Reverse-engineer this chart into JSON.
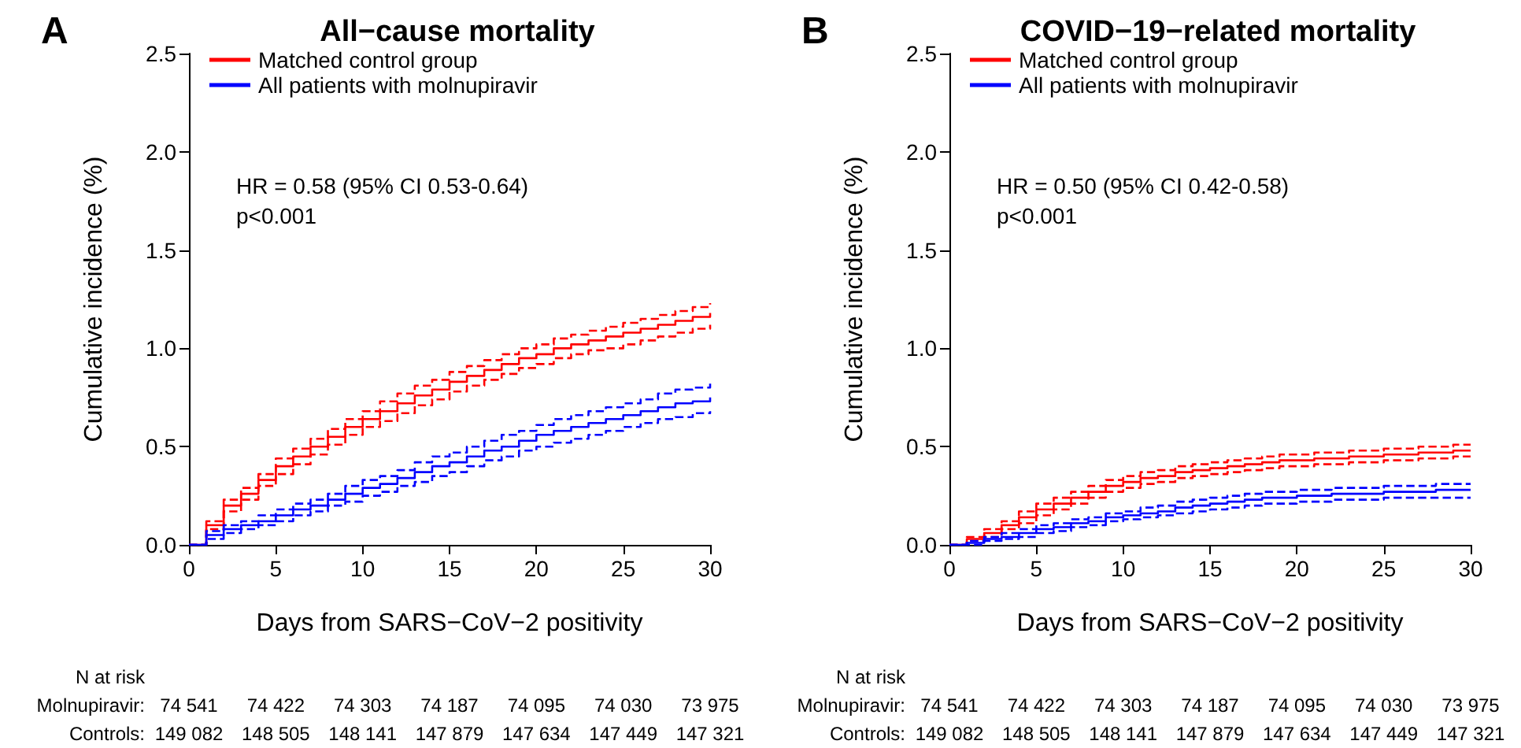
{
  "chart_data": [
    {
      "type": "step",
      "title": "All−cause mortality",
      "xlabel": "Days from SARS−CoV−2 positivity",
      "ylabel": "Cumulative incidence (%)",
      "x": [
        0,
        1,
        2,
        3,
        4,
        5,
        6,
        7,
        8,
        9,
        10,
        11,
        12,
        13,
        14,
        15,
        16,
        17,
        18,
        19,
        20,
        21,
        22,
        23,
        24,
        25,
        26,
        27,
        28,
        29,
        30
      ],
      "series": [
        {
          "name": "Matched control group",
          "color": "#ff0000",
          "values": [
            0,
            0.1,
            0.2,
            0.26,
            0.33,
            0.4,
            0.45,
            0.5,
            0.55,
            0.6,
            0.64,
            0.68,
            0.72,
            0.76,
            0.79,
            0.83,
            0.86,
            0.89,
            0.92,
            0.95,
            0.97,
            1.0,
            1.02,
            1.04,
            1.06,
            1.08,
            1.1,
            1.12,
            1.14,
            1.16,
            1.18
          ]
        },
        {
          "color": "#ff0000",
          "line_style": "dashed",
          "values": [
            0,
            0.08,
            0.17,
            0.23,
            0.3,
            0.36,
            0.41,
            0.46,
            0.51,
            0.56,
            0.6,
            0.63,
            0.67,
            0.71,
            0.74,
            0.78,
            0.81,
            0.84,
            0.87,
            0.9,
            0.92,
            0.95,
            0.97,
            0.99,
            1.0,
            1.02,
            1.04,
            1.06,
            1.08,
            1.1,
            1.12
          ]
        },
        {
          "color": "#ff0000",
          "line_style": "dashed",
          "values": [
            0,
            0.12,
            0.23,
            0.29,
            0.36,
            0.44,
            0.49,
            0.54,
            0.59,
            0.64,
            0.68,
            0.73,
            0.77,
            0.81,
            0.84,
            0.88,
            0.91,
            0.94,
            0.97,
            1.0,
            1.02,
            1.05,
            1.07,
            1.09,
            1.11,
            1.13,
            1.15,
            1.17,
            1.19,
            1.21,
            1.23
          ]
        },
        {
          "name": "All patients with molnupiravir",
          "color": "#0000ff",
          "values": [
            0,
            0.05,
            0.08,
            0.1,
            0.12,
            0.15,
            0.18,
            0.2,
            0.23,
            0.26,
            0.29,
            0.31,
            0.34,
            0.37,
            0.4,
            0.42,
            0.45,
            0.48,
            0.5,
            0.53,
            0.56,
            0.58,
            0.6,
            0.62,
            0.64,
            0.66,
            0.68,
            0.7,
            0.72,
            0.73,
            0.75
          ]
        },
        {
          "color": "#0000ff",
          "line_style": "dashed",
          "values": [
            0,
            0.03,
            0.06,
            0.08,
            0.1,
            0.12,
            0.15,
            0.17,
            0.2,
            0.22,
            0.25,
            0.27,
            0.3,
            0.32,
            0.35,
            0.37,
            0.4,
            0.43,
            0.45,
            0.48,
            0.5,
            0.52,
            0.54,
            0.56,
            0.58,
            0.6,
            0.62,
            0.64,
            0.65,
            0.67,
            0.68
          ]
        },
        {
          "color": "#0000ff",
          "line_style": "dashed",
          "values": [
            0,
            0.07,
            0.1,
            0.12,
            0.15,
            0.18,
            0.21,
            0.23,
            0.26,
            0.3,
            0.33,
            0.35,
            0.38,
            0.42,
            0.45,
            0.47,
            0.5,
            0.53,
            0.56,
            0.58,
            0.61,
            0.64,
            0.66,
            0.68,
            0.7,
            0.72,
            0.74,
            0.77,
            0.79,
            0.8,
            0.82
          ]
        }
      ],
      "xlim": [
        0,
        30
      ],
      "xticks": [
        0,
        5,
        10,
        15,
        20,
        25,
        30
      ],
      "ylim": [
        0,
        2.5
      ],
      "yticks": [
        {
          "value": 0,
          "label": "0.0"
        },
        {
          "value": 0.5,
          "label": "0.5"
        },
        {
          "value": 1,
          "label": "1.0"
        },
        {
          "value": 1.5,
          "label": "1.5"
        },
        {
          "value": 2,
          "label": "2.0"
        },
        {
          "value": 2.5,
          "label": "2.5"
        }
      ],
      "legend": "top left",
      "grid": false,
      "line_style": "solid",
      "annotations": [
        "A",
        "HR = 0.58 (95% CI 0.53-0.64)",
        "p<0.001",
        "N at risk",
        "Molnupiravir:",
        "74 541",
        "74 422",
        "74 303",
        "74 187",
        "74 095",
        "74 030",
        "73 975",
        "Controls:",
        "149 082",
        "148 505",
        "148 141",
        "147 879",
        "147 634",
        "147 449",
        "147 321"
      ]
    },
    {
      "type": "step",
      "title": "COVID−19−related mortality",
      "xlabel": "Days from SARS−CoV−2 positivity",
      "ylabel": "Cumulative incidence (%)",
      "x": [
        0,
        1,
        2,
        3,
        4,
        5,
        6,
        7,
        8,
        9,
        10,
        11,
        12,
        13,
        14,
        15,
        16,
        17,
        18,
        19,
        20,
        21,
        22,
        23,
        24,
        25,
        26,
        27,
        28,
        29,
        30
      ],
      "series": [
        {
          "name": "Matched control group",
          "color": "#ff0000",
          "values": [
            0,
            0.03,
            0.06,
            0.1,
            0.14,
            0.18,
            0.21,
            0.24,
            0.27,
            0.3,
            0.32,
            0.34,
            0.35,
            0.37,
            0.38,
            0.39,
            0.4,
            0.41,
            0.42,
            0.43,
            0.43,
            0.44,
            0.44,
            0.45,
            0.45,
            0.46,
            0.46,
            0.47,
            0.47,
            0.48,
            0.48
          ]
        },
        {
          "color": "#ff0000",
          "line_style": "dashed",
          "values": [
            0,
            0.02,
            0.04,
            0.08,
            0.11,
            0.15,
            0.18,
            0.21,
            0.24,
            0.27,
            0.29,
            0.31,
            0.32,
            0.34,
            0.35,
            0.36,
            0.37,
            0.38,
            0.39,
            0.4,
            0.4,
            0.41,
            0.41,
            0.42,
            0.42,
            0.43,
            0.43,
            0.44,
            0.44,
            0.45,
            0.45
          ]
        },
        {
          "color": "#ff0000",
          "line_style": "dashed",
          "values": [
            0,
            0.04,
            0.08,
            0.12,
            0.17,
            0.21,
            0.24,
            0.27,
            0.3,
            0.33,
            0.35,
            0.37,
            0.38,
            0.4,
            0.41,
            0.42,
            0.43,
            0.44,
            0.45,
            0.46,
            0.46,
            0.47,
            0.47,
            0.48,
            0.48,
            0.49,
            0.49,
            0.5,
            0.5,
            0.51,
            0.51
          ]
        },
        {
          "name": "All patients with molnupiravir",
          "color": "#0000ff",
          "values": [
            0,
            0.01,
            0.03,
            0.04,
            0.06,
            0.08,
            0.09,
            0.11,
            0.12,
            0.14,
            0.15,
            0.16,
            0.17,
            0.19,
            0.2,
            0.21,
            0.22,
            0.23,
            0.24,
            0.24,
            0.25,
            0.25,
            0.26,
            0.26,
            0.26,
            0.27,
            0.27,
            0.27,
            0.28,
            0.28,
            0.28
          ]
        },
        {
          "color": "#0000ff",
          "line_style": "dashed",
          "values": [
            0,
            0.0,
            0.02,
            0.03,
            0.04,
            0.06,
            0.07,
            0.09,
            0.1,
            0.12,
            0.13,
            0.14,
            0.15,
            0.16,
            0.17,
            0.18,
            0.19,
            0.2,
            0.21,
            0.21,
            0.22,
            0.22,
            0.23,
            0.23,
            0.23,
            0.24,
            0.24,
            0.24,
            0.24,
            0.24,
            0.24
          ]
        },
        {
          "color": "#0000ff",
          "line_style": "dashed",
          "values": [
            0,
            0.02,
            0.04,
            0.06,
            0.08,
            0.1,
            0.11,
            0.13,
            0.14,
            0.16,
            0.17,
            0.19,
            0.2,
            0.22,
            0.23,
            0.24,
            0.25,
            0.26,
            0.27,
            0.27,
            0.28,
            0.28,
            0.29,
            0.29,
            0.29,
            0.3,
            0.3,
            0.3,
            0.31,
            0.31,
            0.31
          ]
        }
      ],
      "xlim": [
        0,
        30
      ],
      "xticks": [
        0,
        5,
        10,
        15,
        20,
        25,
        30
      ],
      "ylim": [
        0,
        2.5
      ],
      "yticks": [
        {
          "value": 0,
          "label": "0.0"
        },
        {
          "value": 0.5,
          "label": "0.5"
        },
        {
          "value": 1,
          "label": "1.0"
        },
        {
          "value": 1.5,
          "label": "1.5"
        },
        {
          "value": 2,
          "label": "2.0"
        },
        {
          "value": 2.5,
          "label": "2.5"
        }
      ],
      "legend": "top left",
      "grid": false,
      "line_style": "solid",
      "annotations": [
        "B",
        "HR = 0.50 (95% CI 0.42-0.58)",
        "p<0.001",
        "N at risk",
        "Molnupiravir:",
        "74 541",
        "74 422",
        "74 303",
        "74 187",
        "74 095",
        "74 030",
        "73 975",
        "Controls:",
        "149 082",
        "148 505",
        "148 141",
        "147 879",
        "147 634",
        "147 449",
        "147 321"
      ]
    }
  ]
}
